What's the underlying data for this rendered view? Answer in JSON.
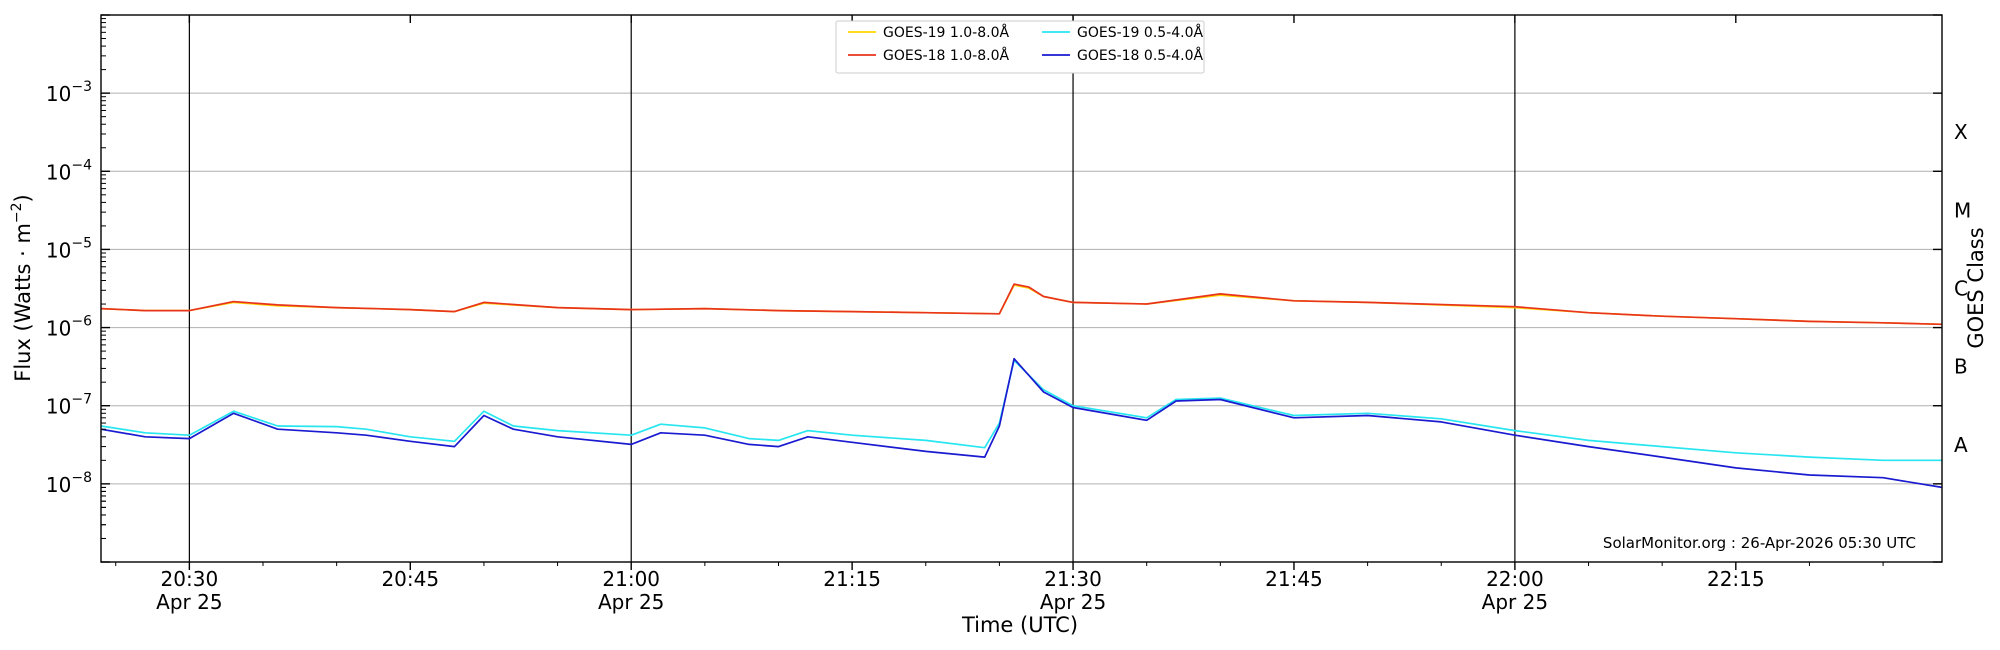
{
  "chart_data": {
    "type": "line",
    "xlabel": "Time (UTC)",
    "ylabel": "Flux (Watts · m",
    "ylabel_superscript": "−2",
    "ylabel_close": ")",
    "y2label": "GOES Class",
    "yscale": "log",
    "ylim": [
      1e-09,
      0.01
    ],
    "xlim": [
      "20:24",
      "22:29"
    ],
    "grid": "horizontal",
    "legend_position": "top-center",
    "credit": "SolarMonitor.org : 26-Apr-2026 05:30 UTC",
    "x_ticks": [
      {
        "time": "20:30",
        "line1": "20:30",
        "line2": "Apr 25"
      },
      {
        "time": "20:45",
        "line1": "20:45",
        "line2": ""
      },
      {
        "time": "21:00",
        "line1": "21:00",
        "line2": "Apr 25"
      },
      {
        "time": "21:15",
        "line1": "21:15",
        "line2": ""
      },
      {
        "time": "21:30",
        "line1": "21:30",
        "line2": "Apr 25"
      },
      {
        "time": "21:45",
        "line1": "21:45",
        "line2": ""
      },
      {
        "time": "22:00",
        "line1": "22:00",
        "line2": "Apr 25"
      },
      {
        "time": "22:15",
        "line1": "22:15",
        "line2": ""
      }
    ],
    "vertical_lines": [
      "20:30",
      "21:00",
      "21:30",
      "22:00"
    ],
    "y_ticks": [
      {
        "exp": -8,
        "base": "10",
        "sup": "−8"
      },
      {
        "exp": -7,
        "base": "10",
        "sup": "−7"
      },
      {
        "exp": -6,
        "base": "10",
        "sup": "−6"
      },
      {
        "exp": -5,
        "base": "10",
        "sup": "−5"
      },
      {
        "exp": -4,
        "base": "10",
        "sup": "−4"
      },
      {
        "exp": -3,
        "base": "10",
        "sup": "−3"
      }
    ],
    "goes_classes": [
      {
        "label": "A",
        "exp": -8
      },
      {
        "label": "B",
        "exp": -7
      },
      {
        "label": "C",
        "exp": -6
      },
      {
        "label": "M",
        "exp": -5
      },
      {
        "label": "X",
        "exp": -4
      }
    ],
    "series": [
      {
        "name": "GOES-19 1.0-8.0Å",
        "color": "#ffd700",
        "x": [
          "20:24",
          "20:27",
          "20:30",
          "20:33",
          "20:36",
          "20:40",
          "20:45",
          "20:48",
          "20:50",
          "20:55",
          "21:00",
          "21:05",
          "21:10",
          "21:15",
          "21:20",
          "21:25",
          "21:26",
          "21:27",
          "21:28",
          "21:30",
          "21:35",
          "21:40",
          "21:45",
          "21:50",
          "22:00",
          "22:05",
          "22:10",
          "22:15",
          "22:20",
          "22:25",
          "22:29"
        ],
        "values": [
          1.75e-06,
          1.65e-06,
          1.65e-06,
          2.1e-06,
          1.9e-06,
          1.8e-06,
          1.7e-06,
          1.6e-06,
          2.05e-06,
          1.8e-06,
          1.7e-06,
          1.75e-06,
          1.65e-06,
          1.6e-06,
          1.55e-06,
          1.5e-06,
          3.5e-06,
          3.2e-06,
          2.5e-06,
          2.1e-06,
          2e-06,
          2.6e-06,
          2.2e-06,
          2.1e-06,
          1.8e-06,
          1.55e-06,
          1.4e-06,
          1.3e-06,
          1.2e-06,
          1.15e-06,
          1.1e-06
        ]
      },
      {
        "name": "GOES-18 1.0-8.0Å",
        "color": "#e8341c",
        "x": [
          "20:24",
          "20:27",
          "20:30",
          "20:33",
          "20:36",
          "20:40",
          "20:45",
          "20:48",
          "20:50",
          "20:55",
          "21:00",
          "21:05",
          "21:10",
          "21:15",
          "21:20",
          "21:25",
          "21:26",
          "21:27",
          "21:28",
          "21:30",
          "21:35",
          "21:40",
          "21:45",
          "21:50",
          "22:00",
          "22:05",
          "22:10",
          "22:15",
          "22:20",
          "22:25",
          "22:29"
        ],
        "values": [
          1.75e-06,
          1.65e-06,
          1.65e-06,
          2.15e-06,
          1.95e-06,
          1.8e-06,
          1.7e-06,
          1.6e-06,
          2.1e-06,
          1.8e-06,
          1.7e-06,
          1.75e-06,
          1.65e-06,
          1.6e-06,
          1.55e-06,
          1.5e-06,
          3.6e-06,
          3.3e-06,
          2.5e-06,
          2.1e-06,
          2e-06,
          2.7e-06,
          2.2e-06,
          2.1e-06,
          1.85e-06,
          1.55e-06,
          1.4e-06,
          1.3e-06,
          1.2e-06,
          1.15e-06,
          1.1e-06
        ]
      },
      {
        "name": "GOES-19 0.5-4.0Å",
        "color": "#28e6f0",
        "x": [
          "20:24",
          "20:27",
          "20:30",
          "20:33",
          "20:36",
          "20:40",
          "20:42",
          "20:45",
          "20:48",
          "20:50",
          "20:52",
          "20:55",
          "21:00",
          "21:02",
          "21:05",
          "21:08",
          "21:10",
          "21:12",
          "21:15",
          "21:20",
          "21:24",
          "21:25",
          "21:26",
          "21:28",
          "21:30",
          "21:35",
          "21:37",
          "21:40",
          "21:45",
          "21:50",
          "21:55",
          "22:00",
          "22:05",
          "22:10",
          "22:15",
          "22:20",
          "22:25",
          "22:29"
        ],
        "values": [
          5.5e-08,
          4.5e-08,
          4.2e-08,
          8.5e-08,
          5.5e-08,
          5.4e-08,
          5e-08,
          4e-08,
          3.5e-08,
          8.5e-08,
          5.5e-08,
          4.8e-08,
          4.2e-08,
          5.8e-08,
          5.2e-08,
          3.8e-08,
          3.6e-08,
          4.8e-08,
          4.2e-08,
          3.6e-08,
          2.9e-08,
          6e-08,
          3.8e-07,
          1.6e-07,
          1e-07,
          7e-08,
          1.2e-07,
          1.25e-07,
          7.5e-08,
          8e-08,
          6.8e-08,
          4.8e-08,
          3.6e-08,
          3e-08,
          2.5e-08,
          2.2e-08,
          2e-08,
          2e-08
        ]
      },
      {
        "name": "GOES-18 0.5-4.0Å",
        "color": "#1a1ad0",
        "x": [
          "20:24",
          "20:27",
          "20:30",
          "20:33",
          "20:36",
          "20:40",
          "20:42",
          "20:45",
          "20:48",
          "20:50",
          "20:52",
          "20:55",
          "21:00",
          "21:02",
          "21:05",
          "21:08",
          "21:10",
          "21:12",
          "21:15",
          "21:20",
          "21:24",
          "21:25",
          "21:26",
          "21:28",
          "21:30",
          "21:35",
          "21:37",
          "21:40",
          "21:45",
          "21:50",
          "21:55",
          "22:00",
          "22:05",
          "22:10",
          "22:15",
          "22:20",
          "22:25",
          "22:29"
        ],
        "values": [
          5e-08,
          4e-08,
          3.8e-08,
          8e-08,
          5e-08,
          4.5e-08,
          4.2e-08,
          3.5e-08,
          3e-08,
          7.5e-08,
          5e-08,
          4e-08,
          3.2e-08,
          4.5e-08,
          4.2e-08,
          3.2e-08,
          3e-08,
          4e-08,
          3.4e-08,
          2.6e-08,
          2.2e-08,
          5.5e-08,
          4e-07,
          1.5e-07,
          9.5e-08,
          6.5e-08,
          1.15e-07,
          1.2e-07,
          7e-08,
          7.5e-08,
          6.2e-08,
          4.2e-08,
          3e-08,
          2.2e-08,
          1.6e-08,
          1.3e-08,
          1.2e-08,
          9e-09
        ]
      }
    ]
  }
}
